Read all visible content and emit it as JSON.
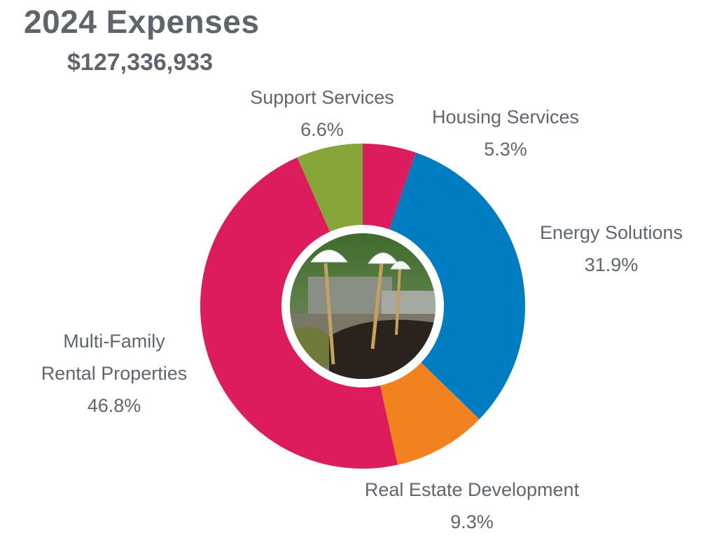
{
  "header": {
    "title": "2024 Expenses",
    "total": "$127,336,933"
  },
  "chart_data": {
    "type": "pie",
    "variant": "donut",
    "title": "2024 Expenses",
    "subtitle": "$127,336,933",
    "center_image": "photo of groundbreaking shovels with white hard hats in soil",
    "slices": [
      {
        "label": "Housing Services",
        "label_lines": [
          "Housing Services"
        ],
        "value": 5.3,
        "display": "5.3%",
        "color": "#dc1c5c"
      },
      {
        "label": "Energy Solutions",
        "label_lines": [
          "Energy Solutions"
        ],
        "value": 31.9,
        "display": "31.9%",
        "color": "#007dc0"
      },
      {
        "label": "Real Estate Development",
        "label_lines": [
          "Real Estate Development"
        ],
        "value": 9.3,
        "display": "9.3%",
        "color": "#f28220"
      },
      {
        "label": "Multi-Family Rental Properties",
        "label_lines": [
          "Multi-Family",
          "Rental Properties"
        ],
        "value": 46.8,
        "display": "46.8%",
        "color": "#dc1c5c"
      },
      {
        "label": "Support Services",
        "label_lines": [
          "Support Services"
        ],
        "value": 6.6,
        "display": "6.6%",
        "color": "#86a63a"
      }
    ]
  }
}
